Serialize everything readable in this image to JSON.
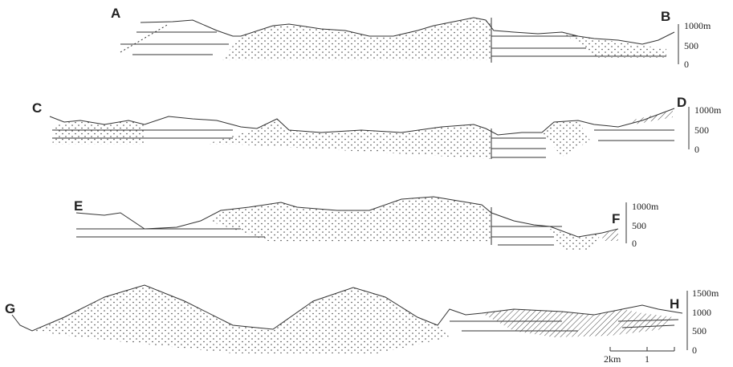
{
  "sections": [
    {
      "start": "A",
      "end": "B",
      "scale": [
        "1000m",
        "500",
        "0"
      ]
    },
    {
      "start": "C",
      "end": "D",
      "scale": [
        "1000m",
        "500",
        "0"
      ]
    },
    {
      "start": "E",
      "end": "F",
      "scale": [
        "1000m",
        "500",
        "0"
      ]
    },
    {
      "start": "G",
      "end": "H",
      "scale": [
        "1500m",
        "1000",
        "500",
        "0"
      ]
    }
  ],
  "scale_bar": {
    "length": "2km",
    "mid": "1"
  }
}
